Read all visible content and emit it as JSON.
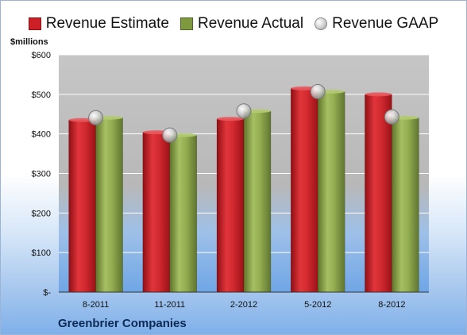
{
  "chart_data": {
    "type": "bar",
    "ylabel": "$millions",
    "company": "Greenbrier Companies",
    "categories": [
      "8-2011",
      "11-2011",
      "2-2012",
      "5-2012",
      "8-2012"
    ],
    "series": [
      {
        "name": "Revenue Estimate",
        "type": "bar",
        "color": "#cc1f26",
        "values": [
          435,
          404,
          438,
          515,
          500
        ]
      },
      {
        "name": "Revenue Actual",
        "type": "bar",
        "color": "#7f9a3e",
        "values": [
          441,
          397,
          458,
          507,
          441
        ]
      },
      {
        "name": "Revenue GAAP",
        "type": "marker",
        "color": "#c8c8c8",
        "values": [
          441,
          397,
          458,
          507,
          443
        ]
      }
    ],
    "yticks": [
      {
        "value": 0,
        "label": "$-"
      },
      {
        "value": 100,
        "label": "$100"
      },
      {
        "value": 200,
        "label": "$200"
      },
      {
        "value": 300,
        "label": "$300"
      },
      {
        "value": 400,
        "label": "$400"
      },
      {
        "value": 500,
        "label": "$500"
      },
      {
        "value": 600,
        "label": "$600"
      }
    ],
    "ylim": [
      0,
      600
    ],
    "grid": true,
    "legend_position": "top"
  }
}
